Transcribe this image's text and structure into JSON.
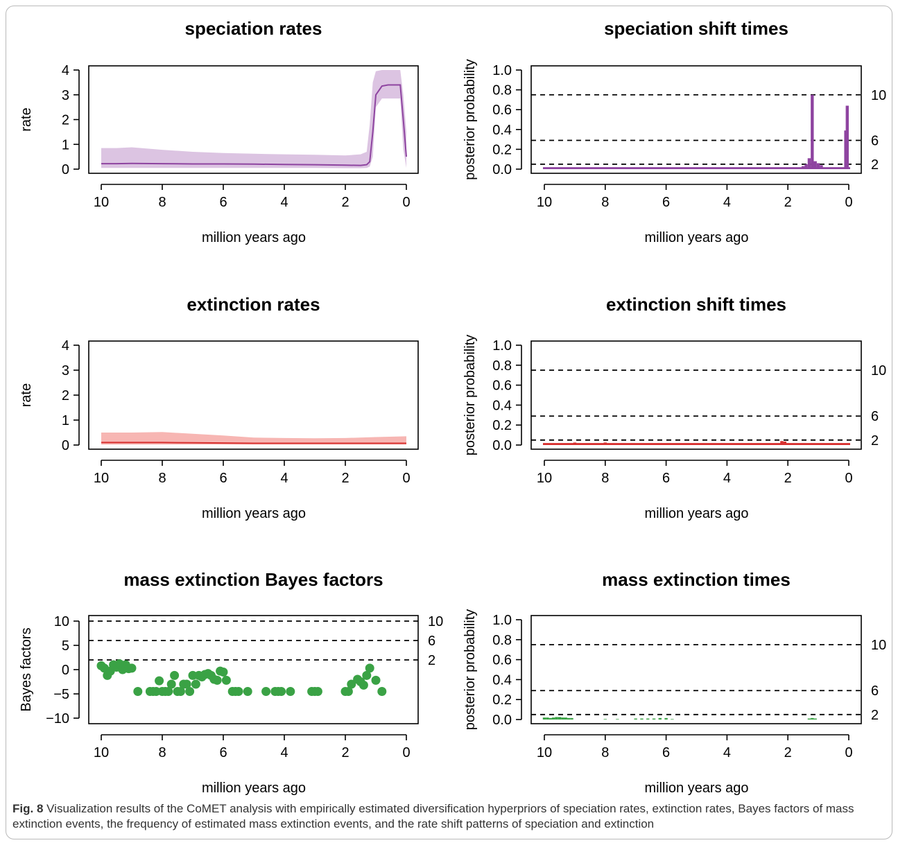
{
  "caption": {
    "label": "Fig. 8",
    "text": "Visualization results of the CoMET analysis with empirically estimated diversification hyperpriors of speciation rates, extinction rates, Bayes factors of mass extinction events, the frequency of estimated mass extinction events, and the rate shift patterns of speciation and extinction"
  },
  "chart_data": [
    {
      "id": "speciation-rates",
      "type": "area",
      "title": "speciation rates",
      "xlabel": "million years ago",
      "ylabel": "rate",
      "xlim": [
        10,
        0
      ],
      "ylim": [
        0,
        4
      ],
      "xticks": [
        10,
        8,
        6,
        4,
        2,
        0
      ],
      "yticks": [
        0,
        1,
        2,
        3,
        4
      ],
      "line_color": "#8e44a0",
      "fill_color": "#dcc4e2",
      "x": [
        10,
        9.5,
        9,
        8,
        7,
        6,
        5,
        4,
        3,
        2,
        1.5,
        1.3,
        1.2,
        1.1,
        1.0,
        0.8,
        0.6,
        0.4,
        0.2,
        0.1,
        0
      ],
      "mean": [
        0.22,
        0.22,
        0.23,
        0.22,
        0.21,
        0.21,
        0.2,
        0.19,
        0.18,
        0.16,
        0.15,
        0.18,
        0.3,
        1.5,
        3.0,
        3.35,
        3.4,
        3.4,
        3.4,
        2.0,
        0.5
      ],
      "upper": [
        0.85,
        0.85,
        0.88,
        0.78,
        0.7,
        0.65,
        0.62,
        0.6,
        0.58,
        0.55,
        0.6,
        0.7,
        1.8,
        3.5,
        3.95,
        4.0,
        4.0,
        4.0,
        4.0,
        3.0,
        1.5
      ],
      "lower": [
        0.05,
        0.05,
        0.05,
        0.05,
        0.05,
        0.05,
        0.05,
        0.05,
        0.05,
        0.04,
        0.04,
        0.05,
        0.1,
        0.5,
        2.5,
        2.85,
        2.85,
        2.85,
        2.85,
        0.8,
        0.05
      ]
    },
    {
      "id": "speciation-shift-times",
      "type": "bar",
      "title": "speciation shift times",
      "xlabel": "million years ago",
      "ylabel": "posterior probability",
      "xlim": [
        10,
        0
      ],
      "ylim": [
        0,
        1
      ],
      "xticks": [
        10,
        8,
        6,
        4,
        2,
        0
      ],
      "yticks": [
        0,
        0.2,
        0.4,
        0.6,
        0.8,
        1.0
      ],
      "ytick_labels": [
        "0.0",
        "0.2",
        "0.4",
        "0.6",
        "0.8",
        "1.0"
      ],
      "bar_color": "#8e44a0",
      "thresholds": [
        {
          "value": 0.05,
          "label": "2"
        },
        {
          "value": 0.29,
          "label": "6"
        },
        {
          "value": 0.75,
          "label": "10"
        }
      ],
      "baseline": 0.02,
      "x": [
        1.5,
        1.4,
        1.3,
        1.2,
        1.1,
        1.0,
        0.9,
        0.1,
        0.05
      ],
      "values": [
        0.03,
        0.05,
        0.11,
        0.75,
        0.08,
        0.06,
        0.04,
        0.39,
        0.64
      ]
    },
    {
      "id": "extinction-rates",
      "type": "area",
      "title": "extinction rates",
      "xlabel": "million years ago",
      "ylabel": "rate",
      "xlim": [
        10,
        0
      ],
      "ylim": [
        0,
        4
      ],
      "xticks": [
        10,
        8,
        6,
        4,
        2,
        0
      ],
      "yticks": [
        0,
        1,
        2,
        3,
        4
      ],
      "line_color": "#d7302f",
      "fill_color": "#f7b6b3",
      "x": [
        10,
        9,
        8,
        7,
        6,
        5,
        4,
        3,
        2,
        1,
        0
      ],
      "mean": [
        0.1,
        0.1,
        0.1,
        0.09,
        0.08,
        0.07,
        0.07,
        0.07,
        0.07,
        0.07,
        0.07
      ],
      "upper": [
        0.5,
        0.5,
        0.52,
        0.45,
        0.38,
        0.3,
        0.28,
        0.27,
        0.28,
        0.32,
        0.35
      ],
      "lower": [
        0.02,
        0.02,
        0.02,
        0.02,
        0.02,
        0.02,
        0.02,
        0.02,
        0.02,
        0.02,
        0.02
      ]
    },
    {
      "id": "extinction-shift-times",
      "type": "bar",
      "title": "extinction shift times",
      "xlabel": "million years ago",
      "ylabel": "posterior probability",
      "xlim": [
        10,
        0
      ],
      "ylim": [
        0,
        1
      ],
      "xticks": [
        10,
        8,
        6,
        4,
        2,
        0
      ],
      "yticks": [
        0,
        0.2,
        0.4,
        0.6,
        0.8,
        1.0
      ],
      "ytick_labels": [
        "0.0",
        "0.2",
        "0.4",
        "0.6",
        "0.8",
        "1.0"
      ],
      "bar_color": "#d7302f",
      "thresholds": [
        {
          "value": 0.05,
          "label": "2"
        },
        {
          "value": 0.29,
          "label": "6"
        },
        {
          "value": 0.75,
          "label": "10"
        }
      ],
      "baseline": 0.02,
      "x": [
        9,
        8,
        2.2,
        2.1
      ],
      "values": [
        0.025,
        0.025,
        0.04,
        0.035
      ]
    },
    {
      "id": "mass-extinction-bayes-factors",
      "type": "scatter",
      "title": "mass extinction Bayes factors",
      "xlabel": "million years ago",
      "ylabel": "Bayes factors",
      "xlim": [
        10,
        0
      ],
      "ylim": [
        -10,
        10
      ],
      "xticks": [
        10,
        8,
        6,
        4,
        2,
        0
      ],
      "yticks": [
        -10,
        -5,
        0,
        5,
        10
      ],
      "ytick_labels": [
        "−10",
        "−5",
        "0",
        "5",
        "10"
      ],
      "point_color": "#3aa245",
      "thresholds": [
        {
          "value": 2,
          "label": "2"
        },
        {
          "value": 6,
          "label": "6"
        },
        {
          "value": 10,
          "label": "10"
        }
      ],
      "x": [
        10,
        9.9,
        9.8,
        9.7,
        9.6,
        9.5,
        9.4,
        9.3,
        9.2,
        9.1,
        9.0,
        8.8,
        8.4,
        8.3,
        8.2,
        8.1,
        8.0,
        7.9,
        7.8,
        7.7,
        7.6,
        7.5,
        7.4,
        7.3,
        7.2,
        7.1,
        7.0,
        6.9,
        6.8,
        6.7,
        6.6,
        6.5,
        6.4,
        6.3,
        6.2,
        6.1,
        6.0,
        5.9,
        5.7,
        5.6,
        5.5,
        5.2,
        4.6,
        4.3,
        4.2,
        4.1,
        3.8,
        3.1,
        3.0,
        2.9,
        2.0,
        1.9,
        1.8,
        1.6,
        1.5,
        1.4,
        1.3,
        1.2,
        1.0,
        0.8
      ],
      "values": [
        0.8,
        0.3,
        -1.2,
        -0.3,
        1.0,
        0.5,
        1.2,
        0.0,
        1.0,
        0.2,
        0.3,
        -4.5,
        -4.5,
        -4.5,
        -4.5,
        -2.3,
        -4.5,
        -4.5,
        -4.5,
        -3.0,
        -1.2,
        -4.5,
        -4.5,
        -3.0,
        -3.0,
        -4.5,
        -1.2,
        -3.0,
        -1.2,
        -1.5,
        -1.0,
        -0.8,
        -1.2,
        -2.0,
        -2.2,
        -0.3,
        -0.5,
        -2.2,
        -4.5,
        -4.5,
        -4.5,
        -4.5,
        -4.5,
        -4.5,
        -4.5,
        -4.5,
        -4.5,
        -4.5,
        -4.5,
        -4.5,
        -4.5,
        -4.5,
        -3.0,
        -2.0,
        -2.5,
        -3.2,
        -1.2,
        0.3,
        -2.2,
        -4.5
      ]
    },
    {
      "id": "mass-extinction-times",
      "type": "bar",
      "title": "mass extinction times",
      "xlabel": "million years ago",
      "ylabel": "posterior probability",
      "xlim": [
        10,
        0
      ],
      "ylim": [
        0,
        1
      ],
      "xticks": [
        10,
        8,
        6,
        4,
        2,
        0
      ],
      "yticks": [
        0,
        0.2,
        0.4,
        0.6,
        0.8,
        1.0
      ],
      "ytick_labels": [
        "0.0",
        "0.2",
        "0.4",
        "0.6",
        "0.8",
        "1.0"
      ],
      "bar_color": "#3aa245",
      "thresholds": [
        {
          "value": 0.05,
          "label": "2"
        },
        {
          "value": 0.29,
          "label": "6"
        },
        {
          "value": 0.75,
          "label": "10"
        }
      ],
      "baseline": 0.0,
      "x": [
        10.0,
        9.9,
        9.8,
        9.7,
        9.6,
        9.5,
        9.4,
        9.3,
        9.2,
        9.1,
        8.0,
        7.6,
        7.0,
        6.8,
        6.6,
        6.4,
        6.2,
        6.0,
        5.8,
        1.3,
        1.2,
        1.1
      ],
      "values": [
        0.02,
        0.02,
        0.015,
        0.02,
        0.025,
        0.025,
        0.02,
        0.02,
        0.015,
        0.015,
        0.005,
        0.005,
        0.01,
        0.01,
        0.01,
        0.01,
        0.015,
        0.015,
        0.005,
        0.01,
        0.015,
        0.01
      ]
    }
  ]
}
